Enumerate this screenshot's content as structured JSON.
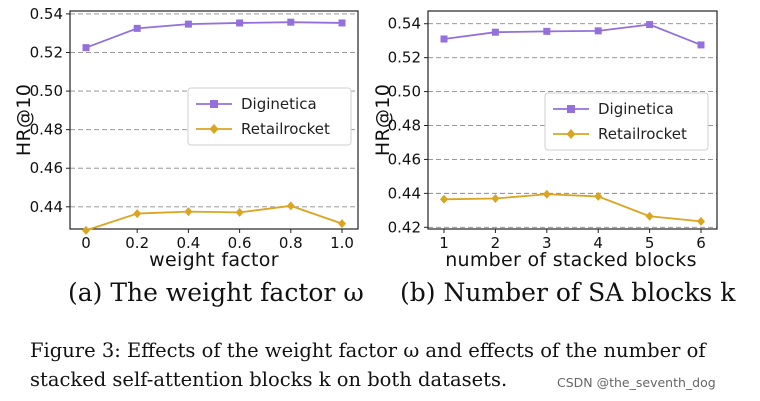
{
  "chart_data": [
    {
      "type": "line",
      "xlabel": "weight factor",
      "ylabel": "HR@10",
      "x": [
        0,
        0.2,
        0.4,
        0.6,
        0.8,
        1.0
      ],
      "xticks": [
        "0",
        "0.2",
        "0.4",
        "0.6",
        "0.8",
        "1.0"
      ],
      "yticks": [
        "0.44",
        "0.46",
        "0.48",
        "0.50",
        "0.52",
        "0.54"
      ],
      "ylim": [
        0.4285,
        0.5415
      ],
      "grid": "y-dashed",
      "legend_position": "middle-right",
      "series": [
        {
          "name": "Diginetica",
          "marker": "square",
          "color": "#9370DB",
          "values": [
            0.5225,
            0.5325,
            0.5347,
            0.5353,
            0.5357,
            0.5353
          ]
        },
        {
          "name": "Retailrocket",
          "marker": "diamond",
          "color": "#DAA520",
          "values": [
            0.4278,
            0.4365,
            0.4375,
            0.4371,
            0.4405,
            0.4313
          ]
        }
      ],
      "subcaption": "(a) The weight factor ω"
    },
    {
      "type": "line",
      "xlabel": "number of stacked blocks",
      "ylabel": "HR@10",
      "x": [
        1,
        2,
        3,
        4,
        5,
        6
      ],
      "xticks": [
        "1",
        "2",
        "3",
        "4",
        "5",
        "6"
      ],
      "yticks": [
        "0.42",
        "0.44",
        "0.46",
        "0.48",
        "0.50",
        "0.52",
        "0.54"
      ],
      "ylim": [
        0.419,
        0.5475
      ],
      "grid": "y-dashed",
      "legend_position": "middle-right",
      "series": [
        {
          "name": "Diginetica",
          "marker": "square",
          "color": "#9370DB",
          "values": [
            0.531,
            0.535,
            0.5355,
            0.5358,
            0.5395,
            0.5275
          ]
        },
        {
          "name": "Retailrocket",
          "marker": "diamond",
          "color": "#DAA520",
          "values": [
            0.4365,
            0.437,
            0.4395,
            0.4382,
            0.4265,
            0.4235
          ]
        }
      ],
      "subcaption": "(b) Number of SA blocks k"
    }
  ],
  "caption": {
    "line1": "Figure 3: Effects of the weight factor ω and effects of the number of",
    "line2": "stacked self-attention blocks k on both datasets."
  },
  "watermark": "CSDN @the_seventh_dog"
}
